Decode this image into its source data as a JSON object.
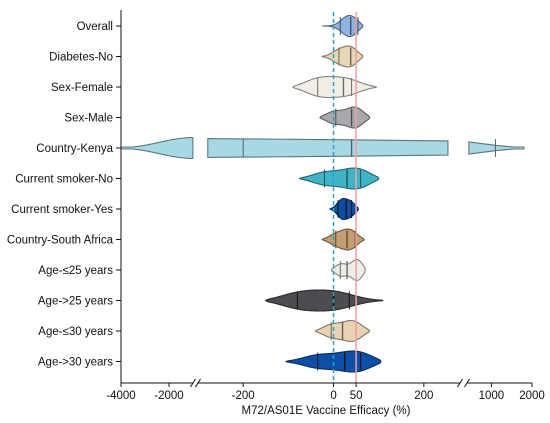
{
  "chart_data": {
    "type": "violin",
    "xlabel": "M72/AS01E Vaccine Efficacy (%)",
    "x_axis": {
      "scale": "broken",
      "segments": [
        {
          "range": [
            -4000,
            -1000
          ],
          "ticks": [
            -4000,
            -2000
          ]
        },
        {
          "range": [
            -300,
            280
          ],
          "ticks": [
            -200,
            0,
            50,
            200
          ]
        },
        {
          "range": [
            400,
            2000
          ],
          "ticks": [
            1000,
            2000
          ]
        }
      ]
    },
    "reference_lines": [
      {
        "x": 0,
        "style": "dashed",
        "color": "#29a3c4"
      },
      {
        "x": 50,
        "style": "solid",
        "color": "#f0a0a0"
      }
    ],
    "categories": [
      {
        "name": "Overall",
        "min": -25,
        "max": 65,
        "q1": 15,
        "median": 38,
        "q3": 54,
        "modes": [
          [
            30,
            0.95
          ],
          [
            45,
            1.0
          ]
        ],
        "fill": "#8fb3e0"
      },
      {
        "name": "Diabetes-No",
        "min": -25,
        "max": 65,
        "q1": 12,
        "median": 38,
        "q3": 50,
        "modes": [
          [
            10,
            0.6
          ],
          [
            40,
            1.0
          ]
        ],
        "fill": "#e7d6b7"
      },
      {
        "name": "Sex-Female",
        "min": -90,
        "max": 95,
        "q1": -35,
        "median": 22,
        "q3": 40,
        "modes": [
          [
            -35,
            0.9
          ],
          [
            30,
            0.8
          ]
        ],
        "fill": "#f1eee7"
      },
      {
        "name": "Sex-Male",
        "min": -30,
        "max": 80,
        "q1": 5,
        "median": 40,
        "q3": 50,
        "modes": [
          [
            0,
            0.6
          ],
          [
            50,
            1.0
          ]
        ],
        "fill": "#a8a8ad"
      },
      {
        "name": "Country-Kenya",
        "min": -4000,
        "max": 1800,
        "q1": -200,
        "median": 40,
        "q3": 1100,
        "modes": [
          [
            -1700,
            1.0
          ],
          [
            -100,
            1.0
          ]
        ],
        "fill": "#a8d8e4"
      },
      {
        "name": "Current smoker-No",
        "min": -75,
        "max": 100,
        "q1": -20,
        "median": 30,
        "q3": 60,
        "modes": [
          [
            -20,
            0.6
          ],
          [
            55,
            1.0
          ]
        ],
        "fill": "#3fb4c6"
      },
      {
        "name": "Current smoker-Yes",
        "min": -8,
        "max": 55,
        "q1": 10,
        "median": 28,
        "q3": 40,
        "modes": [
          [
            18,
            1.0
          ],
          [
            40,
            0.8
          ]
        ],
        "fill": "#0d4fa7"
      },
      {
        "name": "Country-South Africa",
        "min": -25,
        "max": 68,
        "q1": 5,
        "median": 30,
        "q3": 48,
        "modes": [
          [
            5,
            0.6
          ],
          [
            38,
            1.0
          ]
        ],
        "fill": "#c39d71"
      },
      {
        "name": "Age-≤25 years",
        "min": -5,
        "max": 70,
        "q1": 15,
        "median": 30,
        "q3": 50,
        "modes": [
          [
            15,
            0.55
          ],
          [
            55,
            1.0
          ]
        ],
        "fill": "#eeece6"
      },
      {
        "name": "Age->25 years",
        "min": -150,
        "max": 110,
        "q1": -80,
        "median": 0,
        "q3": 35,
        "modes": [
          [
            -80,
            1.0
          ],
          [
            5,
            1.0
          ]
        ],
        "fill": "#4b4d51"
      },
      {
        "name": "Age-≤30 years",
        "min": -40,
        "max": 80,
        "q1": -5,
        "median": 20,
        "q3": 50,
        "modes": [
          [
            -5,
            0.65
          ],
          [
            45,
            1.0
          ]
        ],
        "fill": "#e7d3b4"
      },
      {
        "name": "Age->30 years",
        "min": -105,
        "max": 105,
        "q1": -35,
        "median": 25,
        "q3": 60,
        "modes": [
          [
            -35,
            0.6
          ],
          [
            55,
            1.0
          ]
        ],
        "fill": "#0d4fa7"
      }
    ]
  }
}
